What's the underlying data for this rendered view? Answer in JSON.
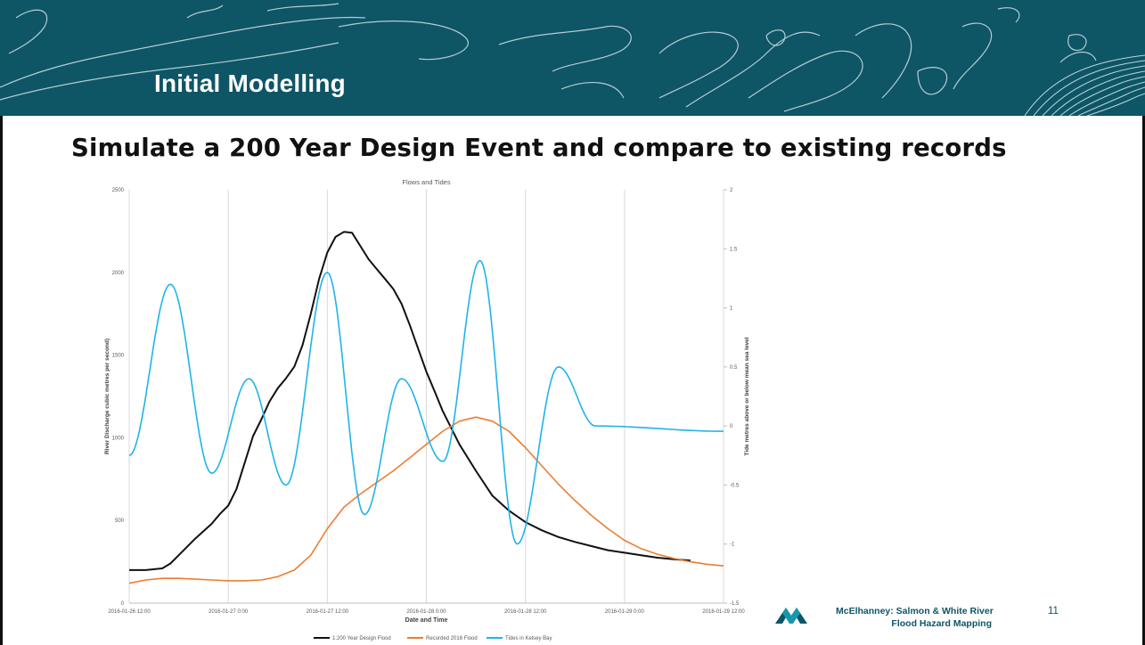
{
  "slide": {
    "title": "Initial Modelling",
    "subtitle": "Simulate a 200 Year Design Event and compare to existing records",
    "footer_line1": "McElhanney: Salmon & White River",
    "footer_line2": "Flood Hazard Mapping",
    "page_number": "11",
    "banner_color": "#0e5566",
    "logo_icon": "mcelhanney-logo-icon"
  },
  "chart_data": {
    "type": "line",
    "title": "Flows and Tides",
    "xlabel": "Date and Time",
    "ylabel": "River Discharge  cubic metres per second)",
    "y2label": "Tide metres above or below mean sea level",
    "x_ticks": [
      "2016-01-26 12:00",
      "2016-01-27 0:00",
      "2016-01-27 12:00",
      "2016-01-28 0:00",
      "2016-01-28 12:00",
      "2016-01-29 0:00",
      "2016-01-29 12:00"
    ],
    "x_range_hours": [
      0,
      72
    ],
    "ylim": [
      0,
      2500
    ],
    "y_ticks": [
      "0",
      "500",
      "1000",
      "1500",
      "2000",
      "2500"
    ],
    "y2lim": [
      -1.5,
      2
    ],
    "y2_ticks": [
      "-1.5",
      "-1",
      "-0.5",
      "0",
      "0.5",
      "1",
      "1.5",
      "2"
    ],
    "grid": "vertical",
    "legend": "bottom",
    "series": [
      {
        "name": "1:200 Year Design Flood",
        "color": "#111111",
        "axis": "left",
        "x": [
          0,
          2,
          4,
          5,
          6,
          8,
          10,
          11,
          12,
          13,
          14,
          15,
          16,
          17,
          18,
          19,
          20,
          21,
          22,
          23,
          24,
          25,
          26,
          27,
          28,
          29,
          30,
          31,
          32,
          33,
          34,
          35,
          36,
          37,
          38,
          40,
          42,
          44,
          46,
          48,
          50,
          52,
          54,
          56,
          58,
          60,
          62,
          64,
          66,
          68
        ],
        "values": [
          200,
          200,
          210,
          240,
          290,
          390,
          480,
          540,
          590,
          690,
          850,
          1010,
          1110,
          1220,
          1300,
          1360,
          1430,
          1560,
          1750,
          1960,
          2120,
          2215,
          2245,
          2240,
          2160,
          2080,
          2020,
          1960,
          1900,
          1810,
          1680,
          1540,
          1400,
          1280,
          1160,
          960,
          800,
          650,
          560,
          490,
          440,
          400,
          370,
          345,
          320,
          305,
          290,
          275,
          265,
          258
        ]
      },
      {
        "name": "Recorded 2016 Flood",
        "color": "#ed7d31",
        "axis": "left",
        "x": [
          0,
          2,
          4,
          6,
          8,
          10,
          12,
          14,
          16,
          18,
          20,
          22,
          24,
          26,
          28,
          30,
          32,
          34,
          36,
          38,
          40,
          42,
          44,
          46,
          48,
          50,
          52,
          54,
          56,
          58,
          60,
          62,
          64,
          66,
          68,
          70,
          72
        ],
        "values": [
          120,
          140,
          150,
          150,
          145,
          140,
          135,
          135,
          140,
          160,
          200,
          290,
          450,
          580,
          660,
          730,
          800,
          880,
          960,
          1040,
          1100,
          1125,
          1100,
          1040,
          940,
          830,
          720,
          620,
          530,
          450,
          380,
          330,
          295,
          270,
          250,
          235,
          225
        ]
      },
      {
        "name": "Tides in Kelsey Bay",
        "color": "#1fb4e8",
        "axis": "right",
        "x": [
          0,
          5,
          10,
          14.5,
          19,
          24,
          28.5,
          33,
          38,
          42.5,
          47,
          52,
          56.5,
          61,
          66,
          70.5,
          72
        ],
        "values": [
          -0.25,
          1.2,
          -0.4,
          0.4,
          -0.5,
          1.3,
          -0.75,
          0.4,
          -0.3,
          1.4,
          -1.0,
          0.5,
          0.0,
          null,
          null,
          null,
          null
        ]
      }
    ]
  }
}
